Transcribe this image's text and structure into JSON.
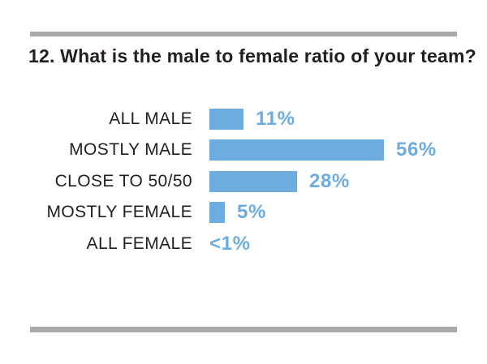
{
  "page": {
    "background": "#ffffff"
  },
  "dividers": {
    "color": "#a9a9a9"
  },
  "chart_data": {
    "type": "bar",
    "orientation": "horizontal",
    "title": "12. What is the male to female ratio of your team?",
    "categories": [
      "ALL MALE",
      "MOSTLY MALE",
      "CLOSE TO 50/50",
      "MOSTLY FEMALE",
      "ALL FEMALE"
    ],
    "values": [
      11,
      56,
      28,
      5,
      0.5
    ],
    "value_labels": [
      "11%",
      "56%",
      "28%",
      "5%",
      "<1%"
    ],
    "bar_color": "#6cacdf",
    "label_color": "#231f20",
    "value_label_color": "#6cacdf",
    "xlim": [
      0,
      60
    ],
    "grid": false,
    "legend": false
  }
}
